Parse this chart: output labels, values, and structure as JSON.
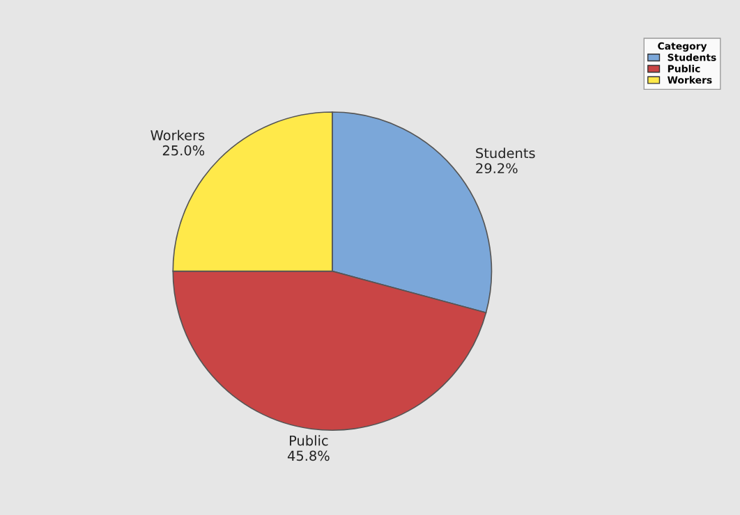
{
  "chart_data": {
    "type": "pie",
    "categories": [
      "Students",
      "Public",
      "Workers"
    ],
    "values": [
      29.2,
      45.8,
      25.0
    ],
    "value_labels": [
      "29.2%",
      "45.8%",
      "25.0%"
    ],
    "colors": [
      "#7ba7d9",
      "#c94545",
      "#ffe94a"
    ],
    "legend_title": "Category",
    "legend": "top right"
  }
}
